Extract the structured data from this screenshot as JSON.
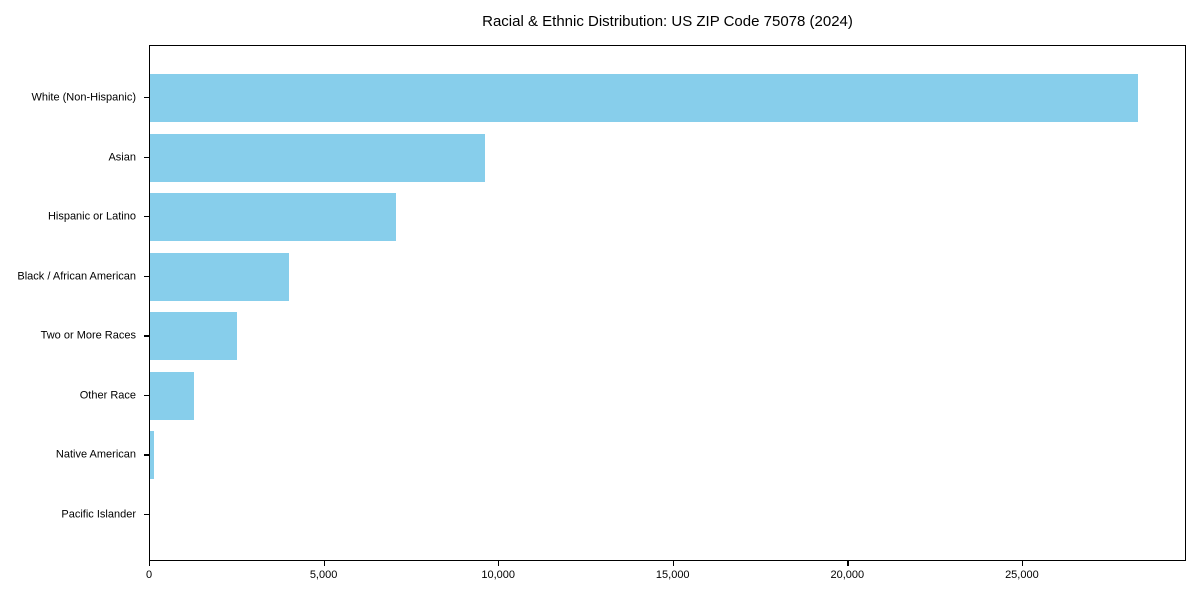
{
  "chart_data": {
    "type": "bar",
    "orientation": "horizontal",
    "title": "Racial & Ethnic Distribution: US ZIP Code 75078 (2024)",
    "categories": [
      "White (Non-Hispanic)",
      "Asian",
      "Hispanic or Latino",
      "Black / African American",
      "Two or More Races",
      "Other Race",
      "Native American",
      "Pacific Islander"
    ],
    "values": [
      28300,
      9600,
      7050,
      3990,
      2490,
      1250,
      115,
      0
    ],
    "xlabel": "",
    "ylabel": "",
    "xlim": [
      0,
      29700
    ],
    "xticks": [
      0,
      5000,
      10000,
      15000,
      20000,
      25000
    ],
    "xtick_labels": [
      "0",
      "5,000",
      "10,000",
      "15,000",
      "20,000",
      "25,000"
    ],
    "bar_color": "#87CEEB",
    "axis_color": "#000000",
    "background": "#FFFFFF",
    "grid": false,
    "legend": null
  }
}
